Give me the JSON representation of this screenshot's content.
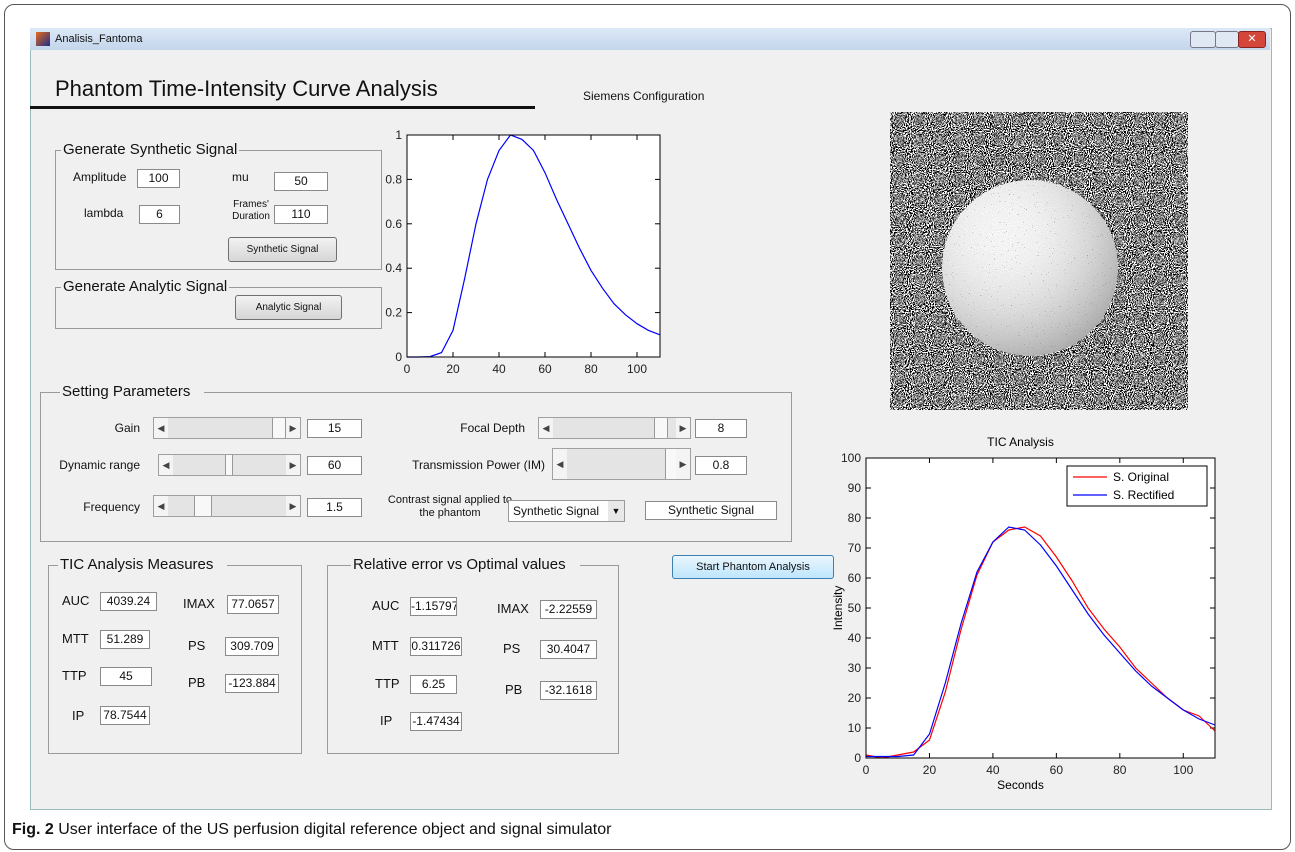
{
  "window": {
    "title": "Analisis_Fantoma"
  },
  "header": {
    "title": "Phantom Time-Intensity Curve Analysis",
    "config": "Siemens Configuration"
  },
  "synthetic": {
    "title": "Generate Synthetic Signal",
    "fields": [
      {
        "label": "Amplitude",
        "value": "100"
      },
      {
        "label": "mu",
        "value": "50"
      },
      {
        "label": "lambda",
        "value": "6"
      },
      {
        "label": "Frames' Duration",
        "value": "110"
      }
    ],
    "button": "Synthetic Signal"
  },
  "analytic": {
    "title": "Generate Analytic Signal",
    "button": "Analytic Signal"
  },
  "settings": {
    "title": "Setting Parameters",
    "sliders": [
      {
        "label": "Gain",
        "value": "15"
      },
      {
        "label": "Dynamic range",
        "value": "60"
      },
      {
        "label": "Frequency",
        "value": "1.5"
      },
      {
        "label": "Focal Depth",
        "value": "8"
      },
      {
        "label": "Transmission Power (IM)",
        "value": "0.8"
      }
    ],
    "contrast": {
      "label": "Contrast signal applied to the phantom",
      "selected": "Synthetic Signal",
      "value": "Synthetic Signal"
    }
  },
  "measures": {
    "title": "TIC Analysis Measures",
    "fields": [
      {
        "label": "AUC",
        "value": "4039.24"
      },
      {
        "label": "IMAX",
        "value": "77.0657"
      },
      {
        "label": "MTT",
        "value": "51.289"
      },
      {
        "label": "PS",
        "value": "309.709"
      },
      {
        "label": "TTP",
        "value": "45"
      },
      {
        "label": "PB",
        "value": "-123.884"
      },
      {
        "label": "IP",
        "value": "78.7544"
      }
    ]
  },
  "errors": {
    "title": "Relative error vs Optimal values",
    "fields": [
      {
        "label": "AUC",
        "value": "-1.15797"
      },
      {
        "label": "IMAX",
        "value": "-2.22559"
      },
      {
        "label": "MTT",
        "value": "0.311726"
      },
      {
        "label": "PS",
        "value": "30.4047"
      },
      {
        "label": "TTP",
        "value": "6.25"
      },
      {
        "label": "PB",
        "value": "-32.1618"
      },
      {
        "label": "IP",
        "value": "-1.47434"
      }
    ]
  },
  "start_button": "Start Phantom Analysis",
  "caption": {
    "label": "Fig. 2",
    "text": "User interface of the US perfusion digital reference object and signal simulator"
  },
  "chart_data": [
    {
      "type": "line",
      "x": [
        0,
        5,
        10,
        15,
        20,
        25,
        30,
        35,
        40,
        45,
        50,
        55,
        60,
        65,
        70,
        75,
        80,
        85,
        90,
        95,
        100,
        105,
        110
      ],
      "values": [
        0,
        0,
        0.002,
        0.02,
        0.12,
        0.35,
        0.6,
        0.8,
        0.93,
        1,
        0.98,
        0.93,
        0.83,
        0.71,
        0.6,
        0.49,
        0.39,
        0.31,
        0.24,
        0.19,
        0.15,
        0.12,
        0.1
      ],
      "color": "#0000ff",
      "xlim": [
        0,
        110
      ],
      "ylim": [
        0,
        1
      ],
      "xticks": [
        0,
        20,
        40,
        60,
        80,
        100
      ],
      "yticks": [
        0,
        0.2,
        0.4,
        0.6,
        0.8,
        1
      ]
    },
    {
      "type": "line",
      "title": "TIC Analysis",
      "x_label": "Seconds",
      "y_label": "Intensity",
      "x": [
        0,
        5,
        10,
        15,
        20,
        25,
        30,
        35,
        40,
        45,
        50,
        55,
        60,
        65,
        70,
        75,
        80,
        85,
        90,
        95,
        100,
        105,
        110
      ],
      "series": [
        {
          "name": "S. Original",
          "color": "#ff0000",
          "values": [
            1,
            0,
            1,
            2,
            6,
            22,
            43,
            61,
            72,
            76,
            77,
            74,
            67,
            59,
            50,
            43,
            37,
            30,
            25,
            20,
            16,
            14,
            9
          ]
        },
        {
          "name": "S. Rectified",
          "color": "#0000ff",
          "values": [
            0.5,
            0.5,
            0.5,
            1,
            8,
            25,
            45,
            62,
            72,
            77,
            76,
            71,
            64,
            56,
            48,
            41,
            35,
            29,
            24,
            20,
            16,
            13,
            11
          ]
        }
      ],
      "xlim": [
        0,
        110
      ],
      "ylim": [
        0,
        100
      ],
      "xticks": [
        0,
        20,
        40,
        60,
        80,
        100
      ],
      "yticks": [
        0,
        10,
        20,
        30,
        40,
        50,
        60,
        70,
        80,
        90,
        100
      ],
      "legend": "upper right"
    }
  ]
}
